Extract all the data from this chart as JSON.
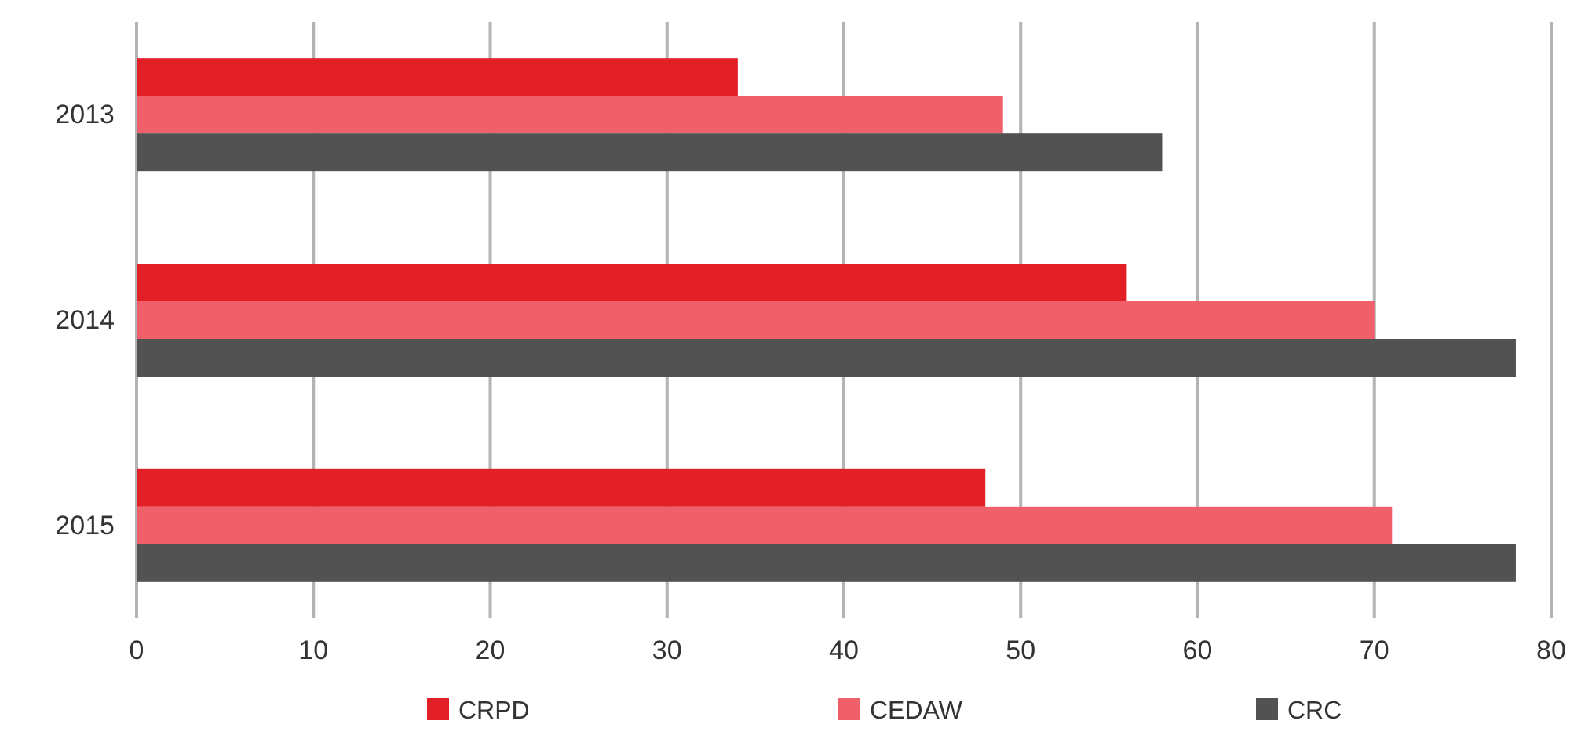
{
  "chart_data": {
    "type": "bar",
    "orientation": "horizontal",
    "categories": [
      "2013",
      "2014",
      "2015"
    ],
    "series": [
      {
        "name": "CRPD",
        "color": "#e21f26",
        "values": [
          34,
          56,
          48
        ]
      },
      {
        "name": "CEDAW",
        "color": "#f0606b",
        "values": [
          49,
          70,
          71
        ]
      },
      {
        "name": "CRC",
        "color": "#525252",
        "values": [
          58,
          78,
          78
        ]
      }
    ],
    "xlim": [
      0,
      80
    ],
    "xticks": [
      0,
      10,
      20,
      30,
      40,
      50,
      60,
      70,
      80
    ],
    "grid": "x",
    "legend": "bottom"
  }
}
